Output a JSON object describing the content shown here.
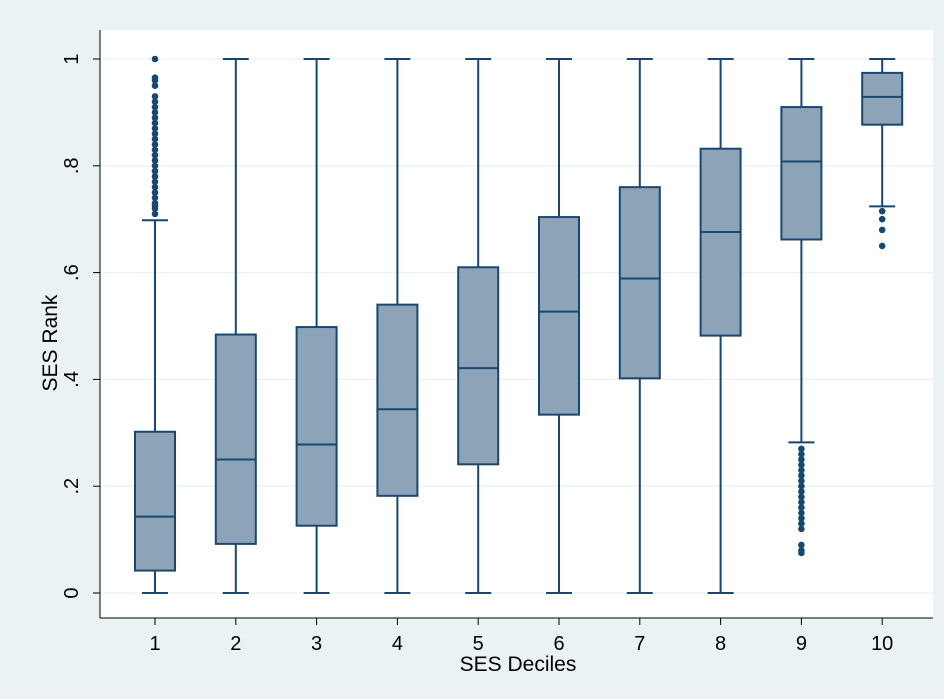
{
  "chart_data": {
    "type": "box",
    "xlabel": "SES Deciles",
    "ylabel": "SES Rank",
    "ylim": [
      0,
      1
    ],
    "yticks": [
      {
        "value": 0,
        "label": "0"
      },
      {
        "value": 0.2,
        "label": ".2"
      },
      {
        "value": 0.4,
        "label": ".4"
      },
      {
        "value": 0.6,
        "label": ".6"
      },
      {
        "value": 0.8,
        "label": ".8"
      },
      {
        "value": 1,
        "label": "1"
      }
    ],
    "categories": [
      "1",
      "2",
      "3",
      "4",
      "5",
      "6",
      "7",
      "8",
      "9",
      "10"
    ],
    "grid": true,
    "colors": {
      "plot_bg": "#ffffff",
      "outer_bg": "#eaf2f3",
      "box_fill": "#8da3b8",
      "box_stroke": "#1a476f",
      "grid": "#eaf2f3"
    },
    "boxes": [
      {
        "category": "1",
        "min": 0,
        "q1": 0.042,
        "median": 0.143,
        "q3": 0.302,
        "max": 0.698,
        "outliers": [
          0.71,
          0.72,
          0.725,
          0.73,
          0.74,
          0.75,
          0.76,
          0.77,
          0.78,
          0.79,
          0.8,
          0.81,
          0.82,
          0.83,
          0.84,
          0.85,
          0.86,
          0.87,
          0.88,
          0.89,
          0.9,
          0.91,
          0.92,
          0.93,
          0.95,
          0.96,
          0.965,
          1.0
        ]
      },
      {
        "category": "2",
        "min": 0,
        "q1": 0.092,
        "median": 0.25,
        "q3": 0.484,
        "max": 1,
        "outliers": []
      },
      {
        "category": "3",
        "min": 0,
        "q1": 0.126,
        "median": 0.278,
        "q3": 0.498,
        "max": 1,
        "outliers": []
      },
      {
        "category": "4",
        "min": 0,
        "q1": 0.182,
        "median": 0.344,
        "q3": 0.54,
        "max": 1,
        "outliers": []
      },
      {
        "category": "5",
        "min": 0,
        "q1": 0.241,
        "median": 0.421,
        "q3": 0.61,
        "max": 1,
        "outliers": []
      },
      {
        "category": "6",
        "min": 0,
        "q1": 0.334,
        "median": 0.527,
        "q3": 0.704,
        "max": 1,
        "outliers": []
      },
      {
        "category": "7",
        "min": 0,
        "q1": 0.402,
        "median": 0.589,
        "q3": 0.76,
        "max": 1,
        "outliers": []
      },
      {
        "category": "8",
        "min": 0,
        "q1": 0.482,
        "median": 0.676,
        "q3": 0.832,
        "max": 1,
        "outliers": []
      },
      {
        "category": "9",
        "min": 0.282,
        "q1": 0.662,
        "median": 0.808,
        "q3": 0.91,
        "max": 1,
        "outliers": [
          0.27,
          0.26,
          0.25,
          0.24,
          0.23,
          0.22,
          0.21,
          0.2,
          0.19,
          0.18,
          0.17,
          0.16,
          0.15,
          0.14,
          0.13,
          0.12,
          0.09,
          0.08,
          0.075
        ]
      },
      {
        "category": "10",
        "min": 0.724,
        "q1": 0.877,
        "median": 0.929,
        "q3": 0.974,
        "max": 1,
        "outliers": [
          0.715,
          0.7,
          0.68,
          0.65
        ]
      }
    ]
  }
}
